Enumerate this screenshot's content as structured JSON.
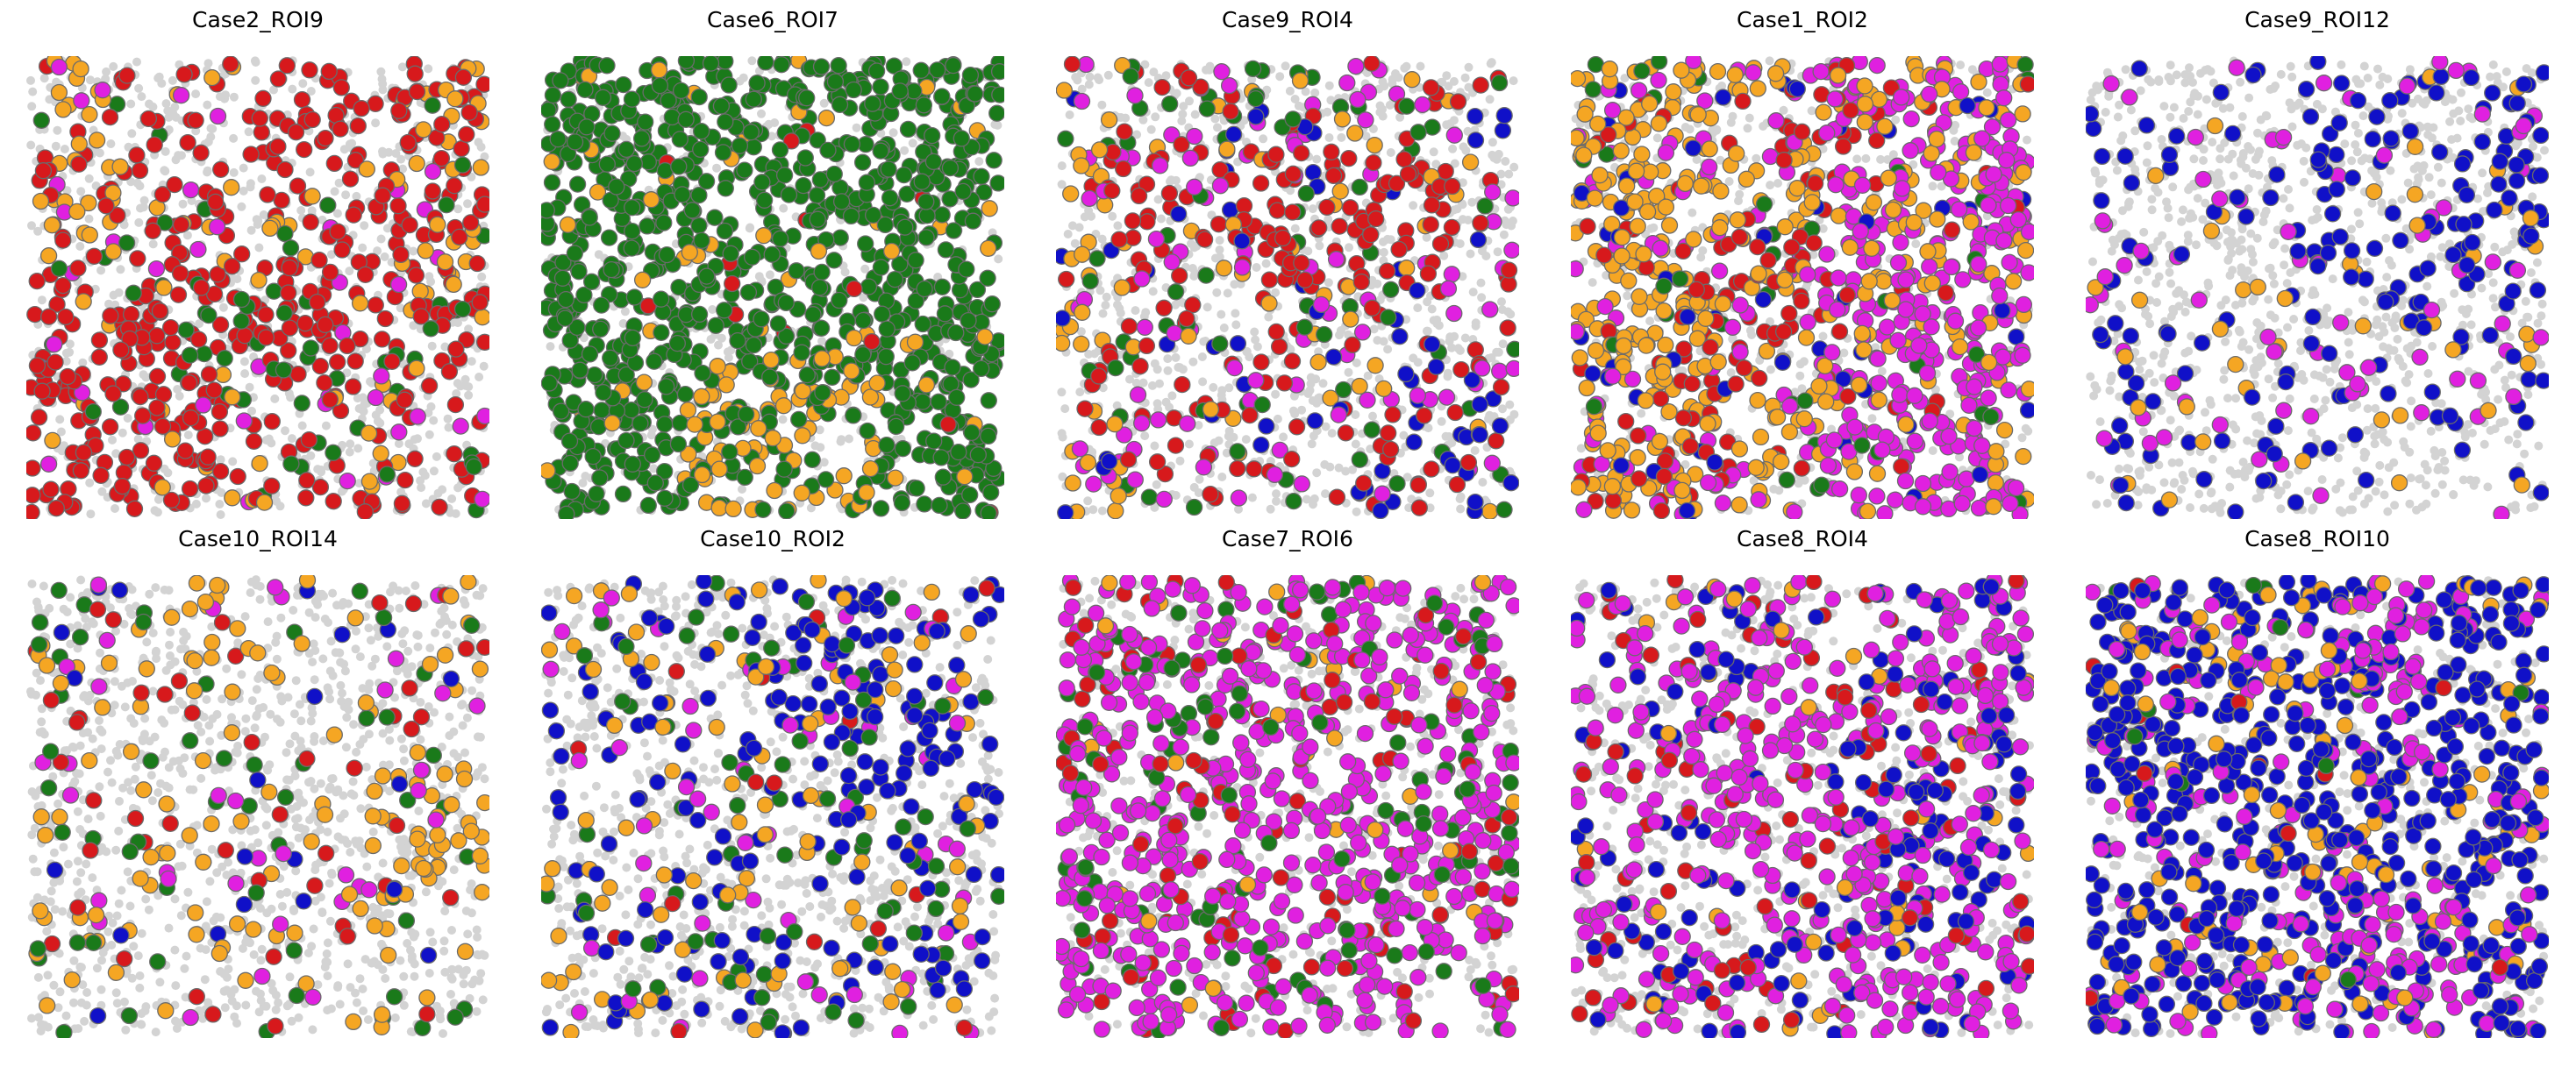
{
  "chart_data": [
    {
      "type": "scatter",
      "title": "Case2_ROI9",
      "density": {
        "grey": 0.55,
        "orange": 0.08,
        "red": 0.32,
        "green": 0.07,
        "blue": 0.0,
        "magenta": 0.02
      },
      "profile": "diagonal-red",
      "seed": 11
    },
    {
      "type": "scatter",
      "title": "Case6_ROI7",
      "density": {
        "grey": 0.25,
        "orange": 0.12,
        "red": 0.01,
        "green": 0.62,
        "blue": 0.0,
        "magenta": 0.0
      },
      "profile": "green-dominant",
      "seed": 23
    },
    {
      "type": "scatter",
      "title": "Case9_ROI4",
      "density": {
        "grey": 0.6,
        "orange": 0.06,
        "red": 0.18,
        "green": 0.05,
        "blue": 0.05,
        "magenta": 0.06
      },
      "profile": "red-clusters",
      "seed": 37
    },
    {
      "type": "scatter",
      "title": "Case1_ROI2",
      "density": {
        "grey": 0.35,
        "orange": 0.3,
        "red": 0.12,
        "green": 0.03,
        "blue": 0.03,
        "magenta": 0.3
      },
      "profile": "orange-magenta",
      "seed": 41
    },
    {
      "type": "scatter",
      "title": "Case9_ROI12",
      "density": {
        "grey": 0.78,
        "orange": 0.03,
        "red": 0.0,
        "green": 0.0,
        "blue": 0.12,
        "magenta": 0.05
      },
      "profile": "sparse-blue",
      "seed": 53
    },
    {
      "type": "scatter",
      "title": "Case10_ROI14",
      "density": {
        "grey": 0.78,
        "orange": 0.12,
        "red": 0.03,
        "green": 0.04,
        "blue": 0.01,
        "magenta": 0.02
      },
      "profile": "sparse-orange",
      "seed": 67
    },
    {
      "type": "scatter",
      "title": "Case10_ROI2",
      "density": {
        "grey": 0.7,
        "orange": 0.06,
        "red": 0.01,
        "green": 0.05,
        "blue": 0.14,
        "magenta": 0.04
      },
      "profile": "sparse-blue",
      "seed": 71
    },
    {
      "type": "scatter",
      "title": "Case7_ROI6",
      "density": {
        "grey": 0.45,
        "orange": 0.02,
        "red": 0.08,
        "green": 0.08,
        "blue": 0.0,
        "magenta": 0.37
      },
      "profile": "magenta-dominant",
      "seed": 83
    },
    {
      "type": "scatter",
      "title": "Case8_ROI4",
      "density": {
        "grey": 0.5,
        "orange": 0.02,
        "red": 0.06,
        "green": 0.0,
        "blue": 0.12,
        "magenta": 0.3
      },
      "profile": "magenta-blue",
      "seed": 97
    },
    {
      "type": "scatter",
      "title": "Case8_ROI10",
      "density": {
        "grey": 0.35,
        "orange": 0.06,
        "red": 0.01,
        "green": 0.01,
        "blue": 0.37,
        "magenta": 0.2
      },
      "profile": "blue-magenta",
      "seed": 103
    }
  ],
  "colors": {
    "grey": "#d3d3d3",
    "orange": "#f5a623",
    "red": "#d7191c",
    "green": "#1a7a1a",
    "blue": "#1010c8",
    "magenta": "#e020e0",
    "edge": "#6b6b6b"
  }
}
